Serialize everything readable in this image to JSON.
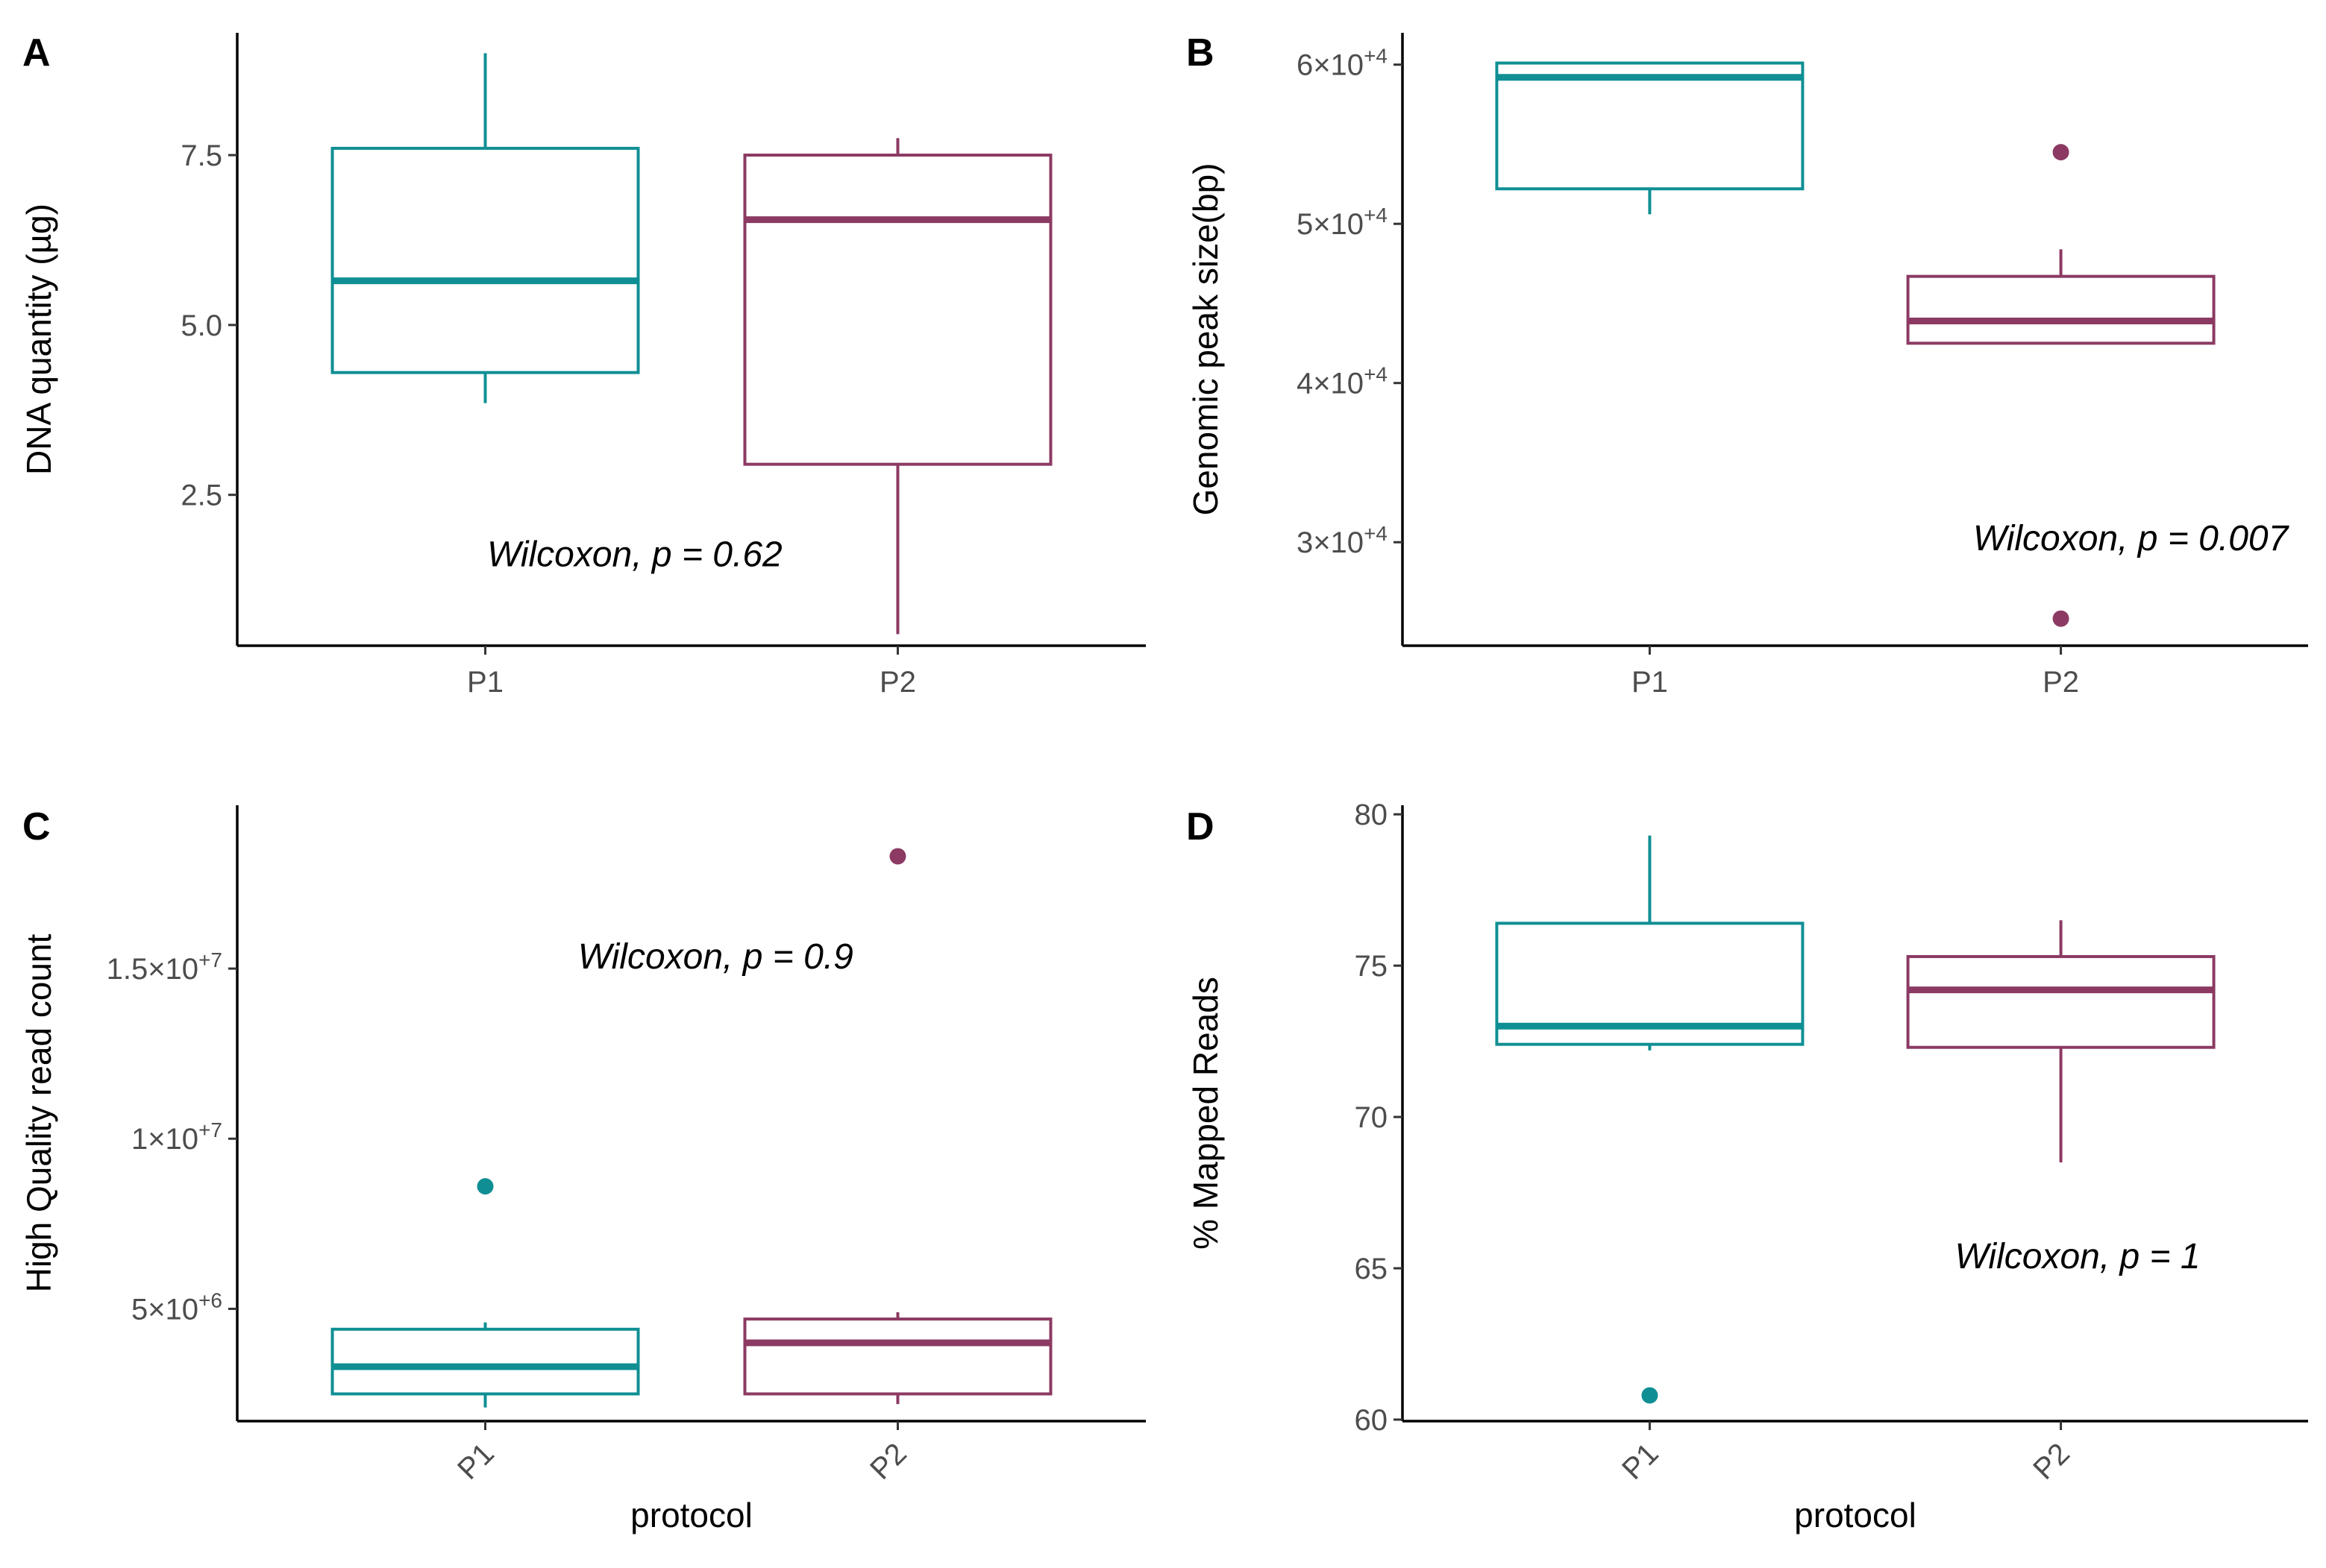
{
  "colors": {
    "P1": "#0f8f94",
    "P2": "#8c3a63"
  },
  "chart_data": [
    {
      "panel": "A",
      "type": "box",
      "ylabel": "DNA quantity (µg)",
      "xlabel": "",
      "categories": [
        "P1",
        "P2"
      ],
      "x_tick_rotation": 0,
      "ylim": [
        0.28,
        9.3
      ],
      "y_ticks": [
        {
          "value": 2.5,
          "label": "2.5"
        },
        {
          "value": 5.0,
          "label": "5.0"
        },
        {
          "value": 7.5,
          "label": "7.5"
        }
      ],
      "boxes": [
        {
          "group": "P1",
          "lower_whisker": 3.85,
          "q1": 4.3,
          "median": 5.65,
          "q3": 7.6,
          "upper_whisker": 9.0,
          "outliers": []
        },
        {
          "group": "P2",
          "lower_whisker": 0.45,
          "q1": 2.95,
          "median": 6.55,
          "q3": 7.5,
          "upper_whisker": 7.75,
          "outliers": []
        }
      ],
      "annotation": {
        "text": "Wilcoxon, p = 0.62",
        "x": 1.05,
        "y": 1.45
      }
    },
    {
      "panel": "B",
      "type": "box",
      "ylabel": "Genomic peak size(bp)",
      "xlabel": "",
      "categories": [
        "P1",
        "P2"
      ],
      "x_tick_rotation": 0,
      "ylim": [
        23500,
        62000
      ],
      "y_ticks": [
        {
          "value": 30000,
          "mant": "3",
          "exp": "+4"
        },
        {
          "value": 40000,
          "mant": "4",
          "exp": "+4"
        },
        {
          "value": 50000,
          "mant": "5",
          "exp": "+4"
        },
        {
          "value": 60000,
          "mant": "6",
          "exp": "+4"
        }
      ],
      "boxes": [
        {
          "group": "P1",
          "lower_whisker": 50600,
          "q1": 52200,
          "median": 59200,
          "q3": 60100,
          "upper_whisker": 60100,
          "outliers": []
        },
        {
          "group": "P2",
          "lower_whisker": 42500,
          "q1": 42500,
          "median": 43900,
          "q3": 46700,
          "upper_whisker": 48400,
          "outliers": [
            54500,
            25200
          ]
        }
      ],
      "annotation": {
        "text": "Wilcoxon, p = 0.007",
        "x": 1.76,
        "y": 29500
      }
    },
    {
      "panel": "C",
      "type": "box",
      "ylabel": "High Quality read count",
      "xlabel": "protocol",
      "categories": [
        "P1",
        "P2"
      ],
      "x_tick_rotation": -45,
      "ylim": [
        1700000,
        19800000
      ],
      "y_ticks": [
        {
          "value": 5000000,
          "mant": "5",
          "exp": "+6"
        },
        {
          "value": 10000000,
          "mant": "1",
          "exp": "+7"
        },
        {
          "value": 15000000,
          "mant": "1.5",
          "exp": "+7"
        }
      ],
      "boxes": [
        {
          "group": "P1",
          "lower_whisker": 2100000,
          "q1": 2500000,
          "median": 3300000,
          "q3": 4400000,
          "upper_whisker": 4600000,
          "outliers": [
            8600000
          ]
        },
        {
          "group": "P2",
          "lower_whisker": 2200000,
          "q1": 2500000,
          "median": 4000000,
          "q3": 4700000,
          "upper_whisker": 4900000,
          "outliers": [
            18300000
          ]
        }
      ],
      "annotation": {
        "text": "Wilcoxon, p = 0.9",
        "x": 1.25,
        "y": 15000000
      }
    },
    {
      "panel": "D",
      "type": "box",
      "ylabel": "% Mapped Reads",
      "xlabel": "protocol",
      "categories": [
        "P1",
        "P2"
      ],
      "x_tick_rotation": -45,
      "ylim": [
        59.95,
        80.3
      ],
      "y_ticks": [
        {
          "value": 60,
          "label": "60"
        },
        {
          "value": 65,
          "label": "65"
        },
        {
          "value": 70,
          "label": "70"
        },
        {
          "value": 75,
          "label": "75"
        },
        {
          "value": 80,
          "label": "80"
        }
      ],
      "boxes": [
        {
          "group": "P1",
          "lower_whisker": 72.2,
          "q1": 72.4,
          "median": 73.0,
          "q3": 76.4,
          "upper_whisker": 79.3,
          "outliers": [
            60.8
          ]
        },
        {
          "group": "P2",
          "lower_whisker": 68.5,
          "q1": 72.3,
          "median": 74.2,
          "q3": 75.3,
          "upper_whisker": 76.5,
          "outliers": []
        }
      ],
      "annotation": {
        "text": "Wilcoxon, p = 1",
        "x": 1.72,
        "y": 65.0
      }
    }
  ]
}
